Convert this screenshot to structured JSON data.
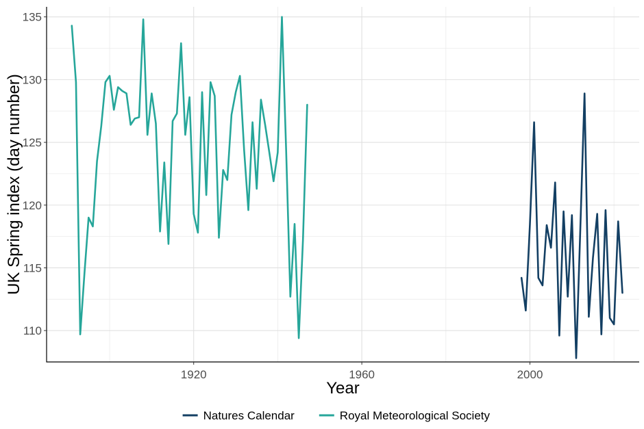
{
  "chart_data": {
    "type": "line",
    "title": "",
    "xlabel": "Year",
    "ylabel": "UK Spring index (day number)",
    "xlim": [
      1885,
      2026
    ],
    "ylim": [
      107.5,
      135.8
    ],
    "x_ticks": [
      1920,
      1960,
      2000
    ],
    "x_tick_labels": [
      "1920",
      "1960",
      "2000"
    ],
    "y_ticks": [
      110,
      115,
      120,
      125,
      130,
      135
    ],
    "y_tick_labels": [
      "110",
      "115",
      "120",
      "125",
      "130",
      "135"
    ],
    "grid": true,
    "legend_position": "bottom",
    "series": [
      {
        "name": "Natures Calendar",
        "color": "#133f63",
        "x": [
          1998,
          1999,
          2000,
          2001,
          2002,
          2003,
          2004,
          2005,
          2006,
          2007,
          2008,
          2009,
          2010,
          2011,
          2012,
          2013,
          2014,
          2015,
          2016,
          2017,
          2018,
          2019,
          2020,
          2021,
          2022
        ],
        "y": [
          114.2,
          111.6,
          118.5,
          126.6,
          114.2,
          113.6,
          118.4,
          116.6,
          121.8,
          109.6,
          119.5,
          112.7,
          119.2,
          107.8,
          118.2,
          128.9,
          111.1,
          115.8,
          119.3,
          109.7,
          119.6,
          111.0,
          110.5,
          118.7,
          113.0
        ]
      },
      {
        "name": "Royal Meteorological Society",
        "color": "#26a69a",
        "x": [
          1891,
          1892,
          1893,
          1894,
          1895,
          1896,
          1897,
          1898,
          1899,
          1900,
          1901,
          1902,
          1903,
          1904,
          1905,
          1906,
          1907,
          1908,
          1909,
          1910,
          1911,
          1912,
          1913,
          1914,
          1915,
          1916,
          1917,
          1918,
          1919,
          1920,
          1921,
          1922,
          1923,
          1924,
          1925,
          1926,
          1927,
          1928,
          1929,
          1930,
          1931,
          1932,
          1933,
          1934,
          1935,
          1936,
          1937,
          1938,
          1939,
          1940,
          1941,
          1942,
          1943,
          1944,
          1945,
          1946,
          1947
        ],
        "y": [
          134.3,
          129.8,
          109.7,
          114.5,
          119.0,
          118.3,
          123.5,
          126.3,
          129.8,
          130.3,
          127.6,
          129.4,
          129.1,
          128.9,
          126.4,
          126.9,
          127.0,
          134.8,
          125.6,
          128.9,
          126.5,
          117.9,
          123.4,
          116.9,
          126.7,
          127.3,
          132.9,
          125.6,
          128.6,
          119.3,
          117.8,
          129.0,
          120.8,
          129.8,
          128.7,
          117.4,
          122.8,
          122.0,
          127.2,
          129.0,
          130.3,
          124.4,
          119.6,
          126.6,
          121.3,
          128.4,
          126.4,
          124.2,
          121.9,
          124.2,
          135.0,
          124.3,
          112.7,
          118.5,
          109.4,
          117.2,
          128.0
        ]
      }
    ]
  }
}
